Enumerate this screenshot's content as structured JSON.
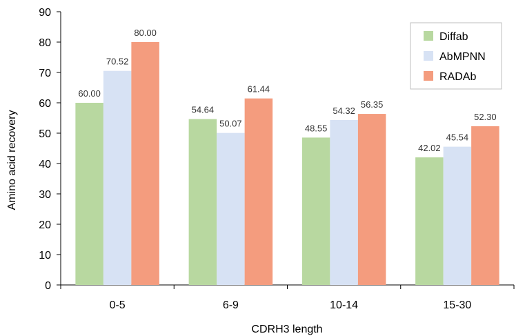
{
  "chart_data": {
    "type": "bar",
    "title": "",
    "xlabel": "CDRH3 length",
    "ylabel": "Amino acid recovery",
    "categories": [
      "0-5",
      "6-9",
      "10-14",
      "15-30"
    ],
    "ylim": [
      0,
      90
    ],
    "yticks": [
      0,
      10,
      20,
      30,
      40,
      50,
      60,
      70,
      80,
      90
    ],
    "grid": false,
    "legend_position": "top-right",
    "series": [
      {
        "name": "Diffab",
        "color": "#b8d8a0",
        "values": [
          60.0,
          54.64,
          48.55,
          42.02
        ],
        "labels": [
          "60.00",
          "54.64",
          "48.55",
          "42.02"
        ]
      },
      {
        "name": "AbMPNN",
        "color": "#d7e2f4",
        "values": [
          70.52,
          50.07,
          54.32,
          45.54
        ],
        "labels": [
          "70.52",
          "50.07",
          "54.32",
          "45.54"
        ]
      },
      {
        "name": "RADAb",
        "color": "#f49c7e",
        "values": [
          80.0,
          61.44,
          56.35,
          52.3
        ],
        "labels": [
          "80.00",
          "61.44",
          "56.35",
          "52.30"
        ]
      }
    ]
  }
}
